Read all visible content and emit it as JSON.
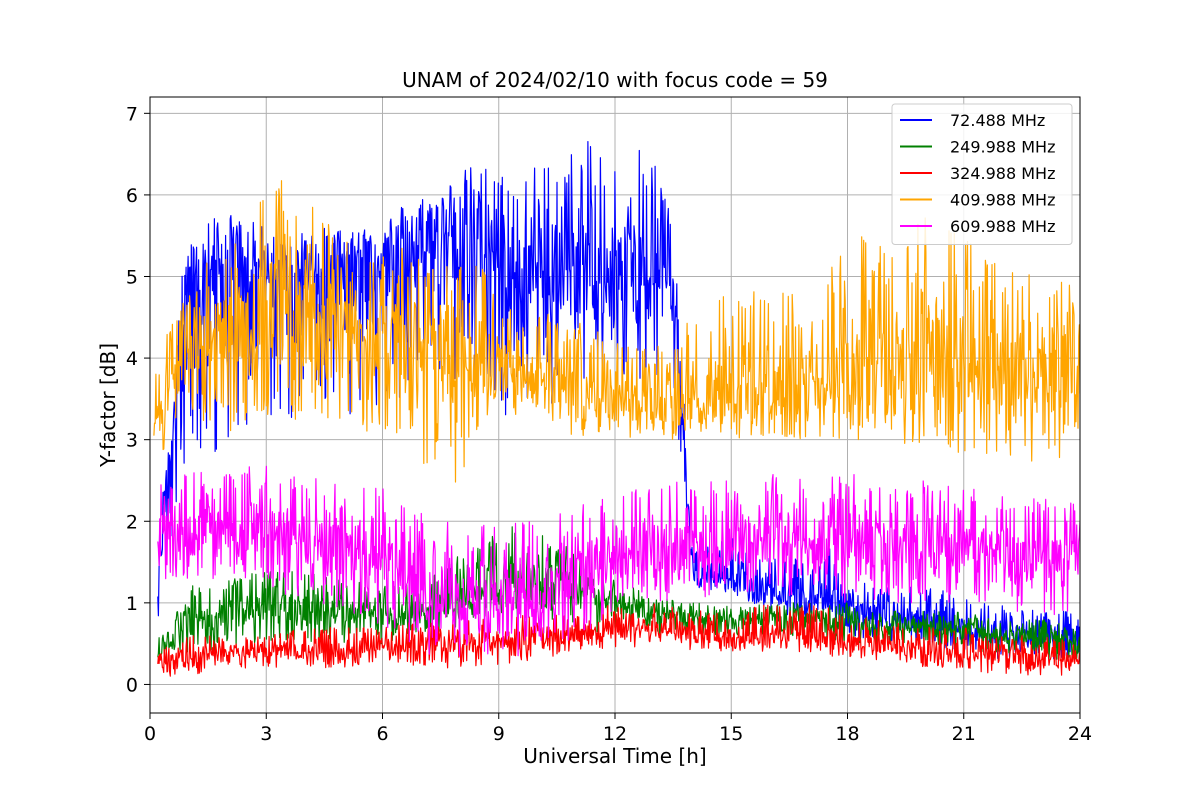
{
  "chart_data": {
    "type": "line",
    "title": "UNAM of 2024/02/10 with focus code = 59",
    "xlabel": "Universal Time [h]",
    "ylabel": "Y-factor [dB]",
    "xlim": [
      0,
      24
    ],
    "ylim": [
      -0.35,
      7.2
    ],
    "x_ticks": [
      0,
      3,
      6,
      9,
      12,
      15,
      18,
      21,
      24
    ],
    "y_ticks": [
      0,
      1,
      2,
      3,
      4,
      5,
      6,
      7
    ],
    "grid": true,
    "legend_position": "top-right",
    "series": [
      {
        "name": " 72.488 MHz",
        "color": "#0000ff",
        "x": [
          0.2,
          0.5,
          0.8,
          1.2,
          1.6,
          2.0,
          2.5,
          3.0,
          3.5,
          4.0,
          4.5,
          5.0,
          5.5,
          6.0,
          6.5,
          7.0,
          7.5,
          8.0,
          8.5,
          9.0,
          9.5,
          10.0,
          10.5,
          11.0,
          11.5,
          12.0,
          12.5,
          13.0,
          13.5,
          14.0,
          15.0,
          16.0,
          17.0,
          17.5,
          18.0,
          19.0,
          20.0,
          21.0,
          22.0,
          23.0,
          24.0
        ],
        "low": [
          0.8,
          1.5,
          2.6,
          2.7,
          2.8,
          2.9,
          3.0,
          3.3,
          3.2,
          3.2,
          3.3,
          3.3,
          3.3,
          3.4,
          3.4,
          3.5,
          3.5,
          3.6,
          3.5,
          3.2,
          3.3,
          3.4,
          3.4,
          3.6,
          3.6,
          3.6,
          3.6,
          3.6,
          3.6,
          1.2,
          1.1,
          0.9,
          0.8,
          0.9,
          0.6,
          0.5,
          0.5,
          0.4,
          0.3,
          0.3,
          0.3
        ],
        "mid": [
          1.2,
          2.8,
          4.6,
          4.8,
          5.0,
          5.0,
          5.0,
          5.0,
          5.1,
          5.1,
          5.1,
          5.1,
          5.1,
          5.2,
          5.3,
          5.4,
          5.4,
          5.5,
          5.5,
          5.2,
          5.0,
          5.0,
          5.0,
          5.1,
          5.1,
          5.1,
          5.1,
          5.1,
          5.0,
          1.3,
          1.3,
          1.1,
          1.0,
          1.1,
          0.9,
          0.8,
          0.8,
          0.7,
          0.6,
          0.6,
          0.6
        ],
        "high": [
          1.7,
          3.4,
          5.3,
          5.5,
          5.8,
          5.8,
          5.7,
          5.6,
          5.5,
          5.5,
          5.6,
          5.6,
          5.7,
          5.7,
          5.9,
          6.0,
          6.1,
          6.3,
          6.4,
          6.3,
          6.3,
          6.4,
          6.5,
          6.6,
          6.7,
          6.8,
          6.8,
          6.7,
          5.7,
          1.7,
          1.8,
          1.6,
          1.6,
          1.8,
          1.3,
          1.2,
          1.2,
          1.1,
          1.0,
          0.9,
          0.9
        ]
      },
      {
        "name": "249.988 MHz",
        "color": "#008000",
        "x": [
          0.2,
          1.0,
          2.0,
          3.0,
          4.0,
          5.0,
          6.0,
          7.0,
          8.0,
          9.0,
          10.0,
          11.0,
          12.0,
          13.0,
          14.0,
          15.0,
          16.0,
          17.0,
          18.0,
          19.0,
          20.0,
          21.0,
          22.0,
          23.0,
          24.0
        ],
        "low": [
          0.3,
          0.4,
          0.4,
          0.5,
          0.5,
          0.5,
          0.5,
          0.6,
          0.7,
          0.8,
          0.8,
          0.7,
          0.6,
          0.6,
          0.6,
          0.6,
          0.6,
          0.6,
          0.5,
          0.5,
          0.5,
          0.4,
          0.4,
          0.3,
          0.3
        ],
        "mid": [
          0.4,
          0.8,
          0.9,
          0.9,
          0.9,
          0.9,
          0.8,
          0.9,
          1.0,
          1.2,
          1.3,
          1.2,
          1.0,
          0.9,
          0.8,
          0.8,
          0.8,
          0.8,
          0.8,
          0.7,
          0.7,
          0.7,
          0.6,
          0.6,
          0.5
        ],
        "high": [
          0.6,
          1.2,
          1.3,
          1.4,
          1.4,
          1.3,
          1.2,
          1.3,
          1.6,
          1.9,
          2.0,
          1.6,
          1.3,
          1.1,
          1.0,
          1.0,
          1.0,
          1.0,
          1.0,
          0.9,
          0.9,
          0.9,
          0.8,
          0.8,
          0.7
        ]
      },
      {
        "name": "324.988 MHz",
        "color": "#ff0000",
        "x": [
          0.2,
          1.0,
          2.0,
          3.0,
          4.0,
          5.0,
          6.0,
          7.0,
          8.0,
          9.0,
          10.0,
          11.0,
          12.0,
          13.0,
          14.0,
          15.0,
          16.0,
          17.0,
          18.0,
          19.0,
          20.0,
          21.0,
          22.0,
          23.0,
          24.0
        ],
        "low": [
          0.1,
          0.1,
          0.2,
          0.2,
          0.2,
          0.2,
          0.3,
          0.2,
          0.2,
          0.2,
          0.3,
          0.4,
          0.4,
          0.5,
          0.4,
          0.4,
          0.4,
          0.4,
          0.3,
          0.3,
          0.2,
          0.2,
          0.1,
          0.1,
          0.1
        ],
        "mid": [
          0.3,
          0.3,
          0.4,
          0.4,
          0.4,
          0.4,
          0.5,
          0.5,
          0.5,
          0.5,
          0.6,
          0.6,
          0.7,
          0.7,
          0.6,
          0.6,
          0.6,
          0.6,
          0.5,
          0.5,
          0.4,
          0.4,
          0.4,
          0.3,
          0.3
        ],
        "high": [
          0.5,
          0.6,
          0.6,
          0.6,
          0.7,
          0.7,
          0.7,
          0.8,
          0.8,
          0.8,
          0.9,
          0.9,
          1.0,
          1.0,
          0.9,
          0.9,
          1.0,
          1.0,
          0.9,
          0.8,
          0.7,
          0.7,
          0.6,
          0.6,
          0.5
        ]
      },
      {
        "name": "409.988 MHz",
        "color": "#ffa500",
        "x": [
          0.1,
          0.5,
          1.0,
          1.5,
          2.0,
          2.5,
          3.0,
          3.5,
          4.0,
          4.5,
          5.0,
          5.5,
          6.0,
          6.5,
          7.0,
          7.5,
          8.0,
          8.5,
          9.0,
          10.0,
          11.0,
          12.0,
          13.0,
          14.0,
          15.0,
          16.0,
          17.0,
          18.0,
          19.0,
          20.0,
          21.0,
          22.0,
          23.0,
          24.0
        ],
        "low": [
          2.6,
          3.0,
          3.3,
          3.2,
          3.1,
          3.0,
          3.1,
          3.3,
          3.2,
          3.2,
          3.2,
          3.1,
          3.0,
          2.9,
          2.7,
          2.6,
          2.4,
          3.1,
          3.3,
          3.2,
          3.0,
          3.0,
          3.0,
          3.0,
          3.0,
          3.0,
          3.0,
          3.0,
          2.9,
          2.9,
          2.8,
          2.8,
          2.7,
          2.6
        ],
        "mid": [
          3.2,
          3.5,
          4.1,
          4.2,
          4.3,
          4.3,
          4.6,
          4.5,
          4.4,
          4.4,
          4.3,
          4.2,
          4.2,
          4.2,
          4.2,
          4.2,
          4.0,
          3.9,
          3.9,
          3.7,
          3.6,
          3.5,
          3.4,
          3.5,
          3.6,
          3.6,
          3.7,
          3.8,
          3.8,
          3.9,
          4.0,
          3.9,
          3.9,
          3.8
        ],
        "high": [
          3.8,
          4.4,
          4.9,
          5.3,
          5.5,
          5.6,
          6.2,
          6.2,
          5.8,
          6.1,
          5.6,
          5.4,
          5.4,
          5.4,
          5.2,
          5.1,
          5.2,
          5.3,
          4.7,
          4.6,
          4.5,
          4.2,
          4.1,
          4.6,
          4.8,
          5.0,
          4.7,
          5.6,
          5.5,
          5.8,
          5.5,
          5.2,
          5.1,
          5.1
        ]
      },
      {
        "name": "609.988 MHz",
        "color": "#ff00ff",
        "x": [
          0.2,
          1.0,
          2.0,
          3.0,
          4.0,
          5.0,
          6.0,
          7.0,
          8.0,
          9.0,
          10.0,
          11.0,
          12.0,
          13.0,
          14.0,
          15.0,
          16.0,
          17.0,
          18.0,
          19.0,
          20.0,
          21.0,
          22.0,
          23.0,
          24.0
        ],
        "low": [
          1.3,
          1.2,
          1.3,
          1.2,
          1.0,
          0.9,
          0.7,
          0.3,
          0.3,
          0.4,
          0.3,
          0.6,
          0.8,
          1.0,
          1.0,
          1.1,
          1.1,
          1.0,
          1.0,
          1.0,
          1.0,
          0.9,
          0.9,
          0.8,
          0.9
        ],
        "mid": [
          1.8,
          1.8,
          1.9,
          1.9,
          1.8,
          1.7,
          1.6,
          1.3,
          1.0,
          1.0,
          1.0,
          1.3,
          1.6,
          1.7,
          1.7,
          1.7,
          1.8,
          1.8,
          1.8,
          1.7,
          1.7,
          1.6,
          1.6,
          1.5,
          1.5
        ],
        "high": [
          2.6,
          2.6,
          2.7,
          2.7,
          2.6,
          2.5,
          2.4,
          2.2,
          1.9,
          2.0,
          2.0,
          2.2,
          2.4,
          2.5,
          2.5,
          2.5,
          2.6,
          2.6,
          2.6,
          2.5,
          2.5,
          2.4,
          2.4,
          2.3,
          2.2
        ]
      }
    ]
  }
}
